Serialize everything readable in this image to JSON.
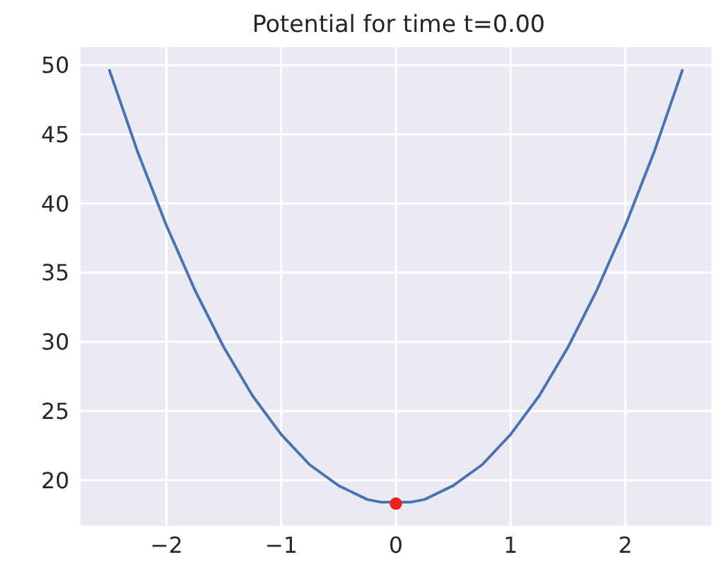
{
  "chart_data": {
    "type": "line",
    "title": "Potential for time t=0.00",
    "xlim": [
      -2.75,
      2.75
    ],
    "xticks": [
      -2,
      -1,
      0,
      1,
      2
    ],
    "ylim": [
      16.7,
      51.3
    ],
    "yticks": [
      20,
      25,
      30,
      35,
      40,
      45,
      50
    ],
    "grid": true,
    "series": [
      {
        "color": "#4c72b0",
        "marker": "none",
        "x": [
          -2.5,
          -2.25,
          -2,
          -1.75,
          -1.5,
          -1.25,
          -1,
          -0.75,
          -0.5,
          -0.25,
          -0.125,
          0.125,
          0.25,
          0.5,
          0.75,
          1,
          1.25,
          1.5,
          1.75,
          2,
          2.25,
          2.5
        ],
        "values": [
          49.7,
          43.7,
          38.4,
          33.7,
          29.6,
          26.1,
          23.3,
          21.1,
          19.6,
          18.6,
          18.4,
          18.4,
          18.6,
          19.6,
          21.1,
          23.3,
          26.1,
          29.6,
          33.7,
          38.4,
          43.7,
          49.7
        ]
      },
      {
        "type": "scatter",
        "color": "#e8251a",
        "marker": "circle",
        "x": [
          0
        ],
        "values": [
          18.3
        ]
      }
    ]
  }
}
